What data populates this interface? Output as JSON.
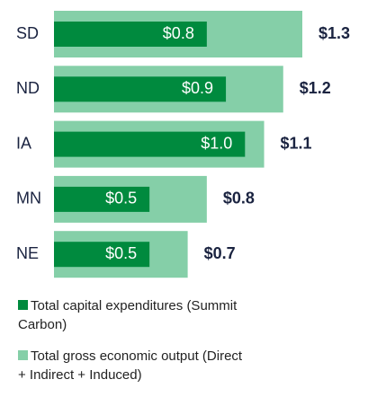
{
  "chart_data": {
    "type": "bar",
    "orientation": "horizontal",
    "categories": [
      "SD",
      "ND",
      "IA",
      "MN",
      "NE"
    ],
    "series": [
      {
        "name": "Total capital expenditures (Summit Carbon)",
        "color": "#008a3e",
        "values": [
          0.8,
          0.9,
          1.0,
          0.5,
          0.5
        ],
        "value_labels": [
          "$0.8",
          "$0.9",
          "$1.0",
          "$0.5",
          "$0.5"
        ]
      },
      {
        "name": "Total gross economic output (Direct + Indirect + Induced)",
        "color": "#85cfa8",
        "values": [
          1.3,
          1.2,
          1.1,
          0.8,
          0.7
        ],
        "value_labels": [
          "$1.3",
          "$1.2",
          "$1.1",
          "$0.8",
          "$0.7"
        ]
      }
    ]
  }
}
